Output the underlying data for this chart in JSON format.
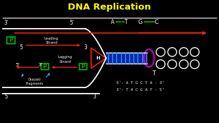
{
  "title": "DNA Replication",
  "title_color": "#FFFF00",
  "bg_color": "#000000",
  "line_color": "#FFFFFF",
  "arrow_red": "#FF2200",
  "blue": "#4499FF",
  "green_box": "#00BB00",
  "purple": "#CC00CC",
  "dna_green": "#00CC00",
  "sequence_top": "5'- A T G C T A - 3'",
  "sequence_bot": "3'- T A C G A T - 5'"
}
